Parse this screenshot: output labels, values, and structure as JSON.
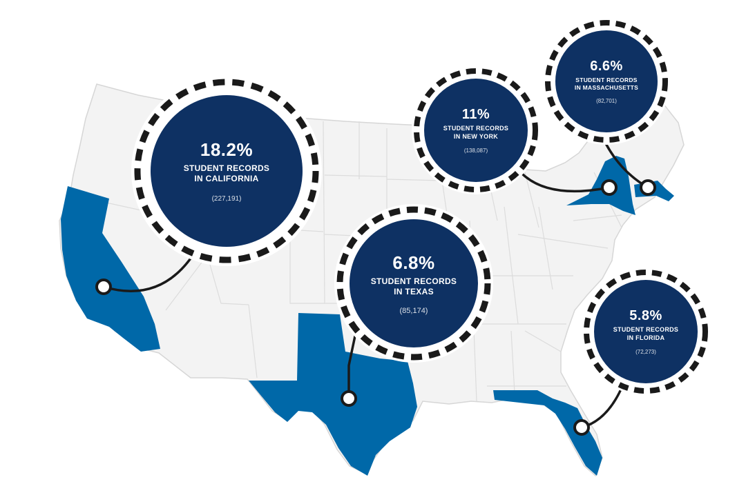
{
  "map": {
    "colors": {
      "land": "#f3f3f3",
      "border": "#d9d9d9",
      "highlight": "#0068a8",
      "bubble": "#0e3163",
      "dash": "#1a1a1a",
      "connector": "#1a1a1a"
    },
    "highlighted_states": [
      "California",
      "Texas",
      "Florida",
      "New York",
      "Massachusetts"
    ]
  },
  "callouts": [
    {
      "id": "california",
      "percent": "18.2%",
      "line1": "STUDENT RECORDS",
      "line2": "IN CALIFORNIA",
      "count": "(227,191)"
    },
    {
      "id": "texas",
      "percent": "6.8%",
      "line1": "STUDENT RECORDS",
      "line2": "IN TEXAS",
      "count": "(85,174)"
    },
    {
      "id": "new-york",
      "percent": "11%",
      "line1": "STUDENT RECORDS",
      "line2": "IN NEW YORK",
      "count": "(138,087)"
    },
    {
      "id": "massachusetts",
      "percent": "6.6%",
      "line1": "STUDENT RECORDS",
      "line2": "IN MASSACHUSETTS",
      "count": "(82,701)"
    },
    {
      "id": "florida",
      "percent": "5.8%",
      "line1": "STUDENT RECORDS",
      "line2": "IN FLORIDA",
      "count": "(72,273)"
    }
  ]
}
